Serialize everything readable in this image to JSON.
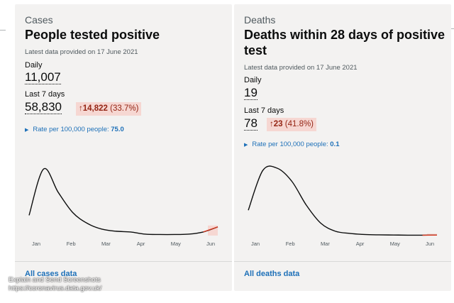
{
  "cases": {
    "category": "Cases",
    "title": "People tested positive",
    "latest": "Latest data provided on 17 June 2021",
    "daily_label": "Daily",
    "daily_value": "11,007",
    "last7_label": "Last 7 days",
    "last7_value": "58,830",
    "change_arrow": "↑",
    "change_value": "14,822",
    "change_pct": "(33.7%)",
    "rate_label": "Rate per 100,000 people:",
    "rate_value": "75.0",
    "link": "All cases data",
    "chart_data": {
      "type": "line",
      "x": [
        "Dec",
        "Jan",
        "Jan",
        "Jan",
        "Feb",
        "Feb",
        "Mar",
        "Mar",
        "Apr",
        "Apr",
        "May",
        "May",
        "Jun",
        "Jun"
      ],
      "values": [
        0.28,
        0.92,
        0.6,
        0.32,
        0.17,
        0.09,
        0.06,
        0.05,
        0.02,
        0.015,
        0.015,
        0.02,
        0.05,
        0.12
      ],
      "tick_labels": [
        "Jan",
        "Feb",
        "Mar",
        "Apr",
        "May",
        "Jun"
      ],
      "highlight_last_7_days": true,
      "line_color": "#0b0c0c",
      "highlight_color": "#f6d7d2"
    }
  },
  "deaths": {
    "category": "Deaths",
    "title": "Deaths within 28 days of positive test",
    "latest": "Latest data provided on 17 June 2021",
    "daily_label": "Daily",
    "daily_value": "19",
    "last7_label": "Last 7 days",
    "last7_value": "78",
    "change_arrow": "↑",
    "change_value": "23",
    "change_pct": "(41.8%)",
    "rate_label": "Rate per 100,000 people:",
    "rate_value": "0.1",
    "link": "All deaths data",
    "chart_data": {
      "type": "line",
      "x": [
        "Dec",
        "Jan",
        "Jan",
        "Jan",
        "Feb",
        "Feb",
        "Mar",
        "Mar",
        "Apr",
        "Apr",
        "May",
        "May",
        "Jun",
        "Jun"
      ],
      "values": [
        0.35,
        0.9,
        0.93,
        0.75,
        0.42,
        0.17,
        0.06,
        0.03,
        0.015,
        0.01,
        0.008,
        0.006,
        0.006,
        0.007
      ],
      "tick_labels": [
        "Jan",
        "Feb",
        "Mar",
        "Apr",
        "May",
        "Jun"
      ],
      "highlight_last_7_days": true,
      "line_color": "#0b0c0c",
      "highlight_color": "#f6d7d2"
    }
  },
  "watermark": {
    "line1": "Explain and Send Screenshots",
    "line2": "https://coronavirus.data.gov.uk/"
  }
}
